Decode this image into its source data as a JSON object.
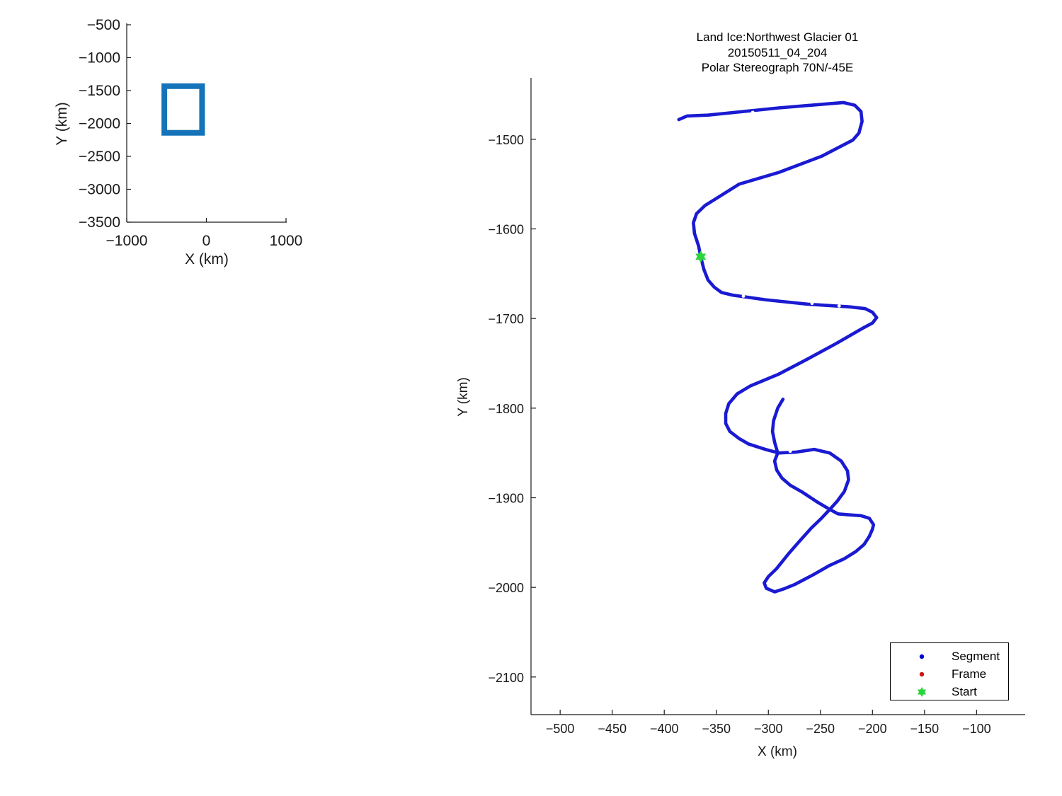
{
  "figure": {
    "background": "#ffffff",
    "text_color": "#1a1a1a"
  },
  "chart_data": [
    {
      "name": "overview-map",
      "type": "line",
      "xlabel": "X (km)",
      "ylabel": "Y (km)",
      "xticks": [
        -1000,
        0,
        1000
      ],
      "yticks": [
        -500,
        -1000,
        -1500,
        -2000,
        -2500,
        -3000,
        -3500
      ],
      "xlim": [
        -1000,
        1000
      ],
      "ylim": [
        -500,
        -3500
      ],
      "grid": false,
      "legend_position": "none",
      "view_rect": {
        "x0": -528,
        "x1": -54,
        "y0": -1433,
        "y1": -2142,
        "color": "#1473b9",
        "line_width": 8
      }
    },
    {
      "name": "flight-track",
      "type": "line",
      "title_lines": [
        "Land Ice:Northwest Glacier 01",
        "20150511_04_204",
        "Polar Stereograph 70N/-45E"
      ],
      "xlabel": "X (km)",
      "ylabel": "Y (km)",
      "xticks": [
        -500,
        -450,
        -400,
        -350,
        -300,
        -250,
        -200,
        -150,
        -100
      ],
      "yticks": [
        -1500,
        -1600,
        -1700,
        -1800,
        -1900,
        -2000,
        -2100
      ],
      "xlim": [
        -528,
        -54
      ],
      "ylim": [
        -1433,
        -2142
      ],
      "grid": false,
      "series": [
        {
          "name": "Segment",
          "color": "#1a1ad2",
          "line_width": 4.6,
          "points": [
            [
              -386,
              -1478
            ],
            [
              -378,
              -1474
            ],
            [
              -358,
              -1473
            ],
            [
              -290,
              -1465
            ],
            [
              -228,
              -1459
            ],
            [
              -217,
              -1462
            ],
            [
              -211,
              -1469
            ],
            [
              -210,
              -1480
            ],
            [
              -213,
              -1493
            ],
            [
              -219,
              -1501
            ],
            [
              -249,
              -1519
            ],
            [
              -290,
              -1537
            ],
            [
              -328,
              -1550
            ],
            [
              -361,
              -1574
            ],
            [
              -369,
              -1583
            ],
            [
              -372,
              -1593
            ],
            [
              -371,
              -1605
            ],
            [
              -367,
              -1619
            ],
            [
              -365,
              -1631
            ],
            [
              -362,
              -1645
            ],
            [
              -358,
              -1657
            ],
            [
              -352,
              -1665
            ],
            [
              -345,
              -1671
            ],
            [
              -334,
              -1674
            ],
            [
              -303,
              -1679
            ],
            [
              -262,
              -1684
            ],
            [
              -222,
              -1687
            ],
            [
              -207,
              -1689
            ],
            [
              -200,
              -1693
            ],
            [
              -196,
              -1699
            ],
            [
              -200,
              -1705
            ],
            [
              -208,
              -1710
            ],
            [
              -235,
              -1728
            ],
            [
              -262,
              -1745
            ],
            [
              -290,
              -1762
            ],
            [
              -317,
              -1775
            ],
            [
              -330,
              -1784
            ],
            [
              -338,
              -1795
            ],
            [
              -341,
              -1806
            ],
            [
              -341,
              -1817
            ],
            [
              -337,
              -1826
            ],
            [
              -328,
              -1834
            ],
            [
              -319,
              -1840
            ],
            [
              -303,
              -1846
            ],
            [
              -290,
              -1850
            ],
            [
              -273,
              -1849
            ],
            [
              -256,
              -1846
            ],
            [
              -241,
              -1850
            ],
            [
              -230,
              -1859
            ],
            [
              -224,
              -1870
            ],
            [
              -223,
              -1880
            ],
            [
              -227,
              -1893
            ],
            [
              -234,
              -1904
            ],
            [
              -241,
              -1913
            ],
            [
              -250,
              -1924
            ],
            [
              -259,
              -1934
            ],
            [
              -269,
              -1947
            ],
            [
              -281,
              -1963
            ],
            [
              -292,
              -1979
            ],
            [
              -300,
              -1988
            ],
            [
              -304,
              -1995
            ],
            [
              -302,
              -2001
            ],
            [
              -294,
              -2005
            ],
            [
              -286,
              -2002
            ],
            [
              -275,
              -1997
            ],
            [
              -257,
              -1986
            ],
            [
              -242,
              -1976
            ],
            [
              -227,
              -1968
            ],
            [
              -216,
              -1960
            ],
            [
              -208,
              -1952
            ],
            [
              -203,
              -1943
            ],
            [
              -200,
              -1935
            ],
            [
              -199,
              -1930
            ],
            [
              -203,
              -1923
            ],
            [
              -211,
              -1920
            ],
            [
              -223,
              -1919
            ],
            [
              -233,
              -1918
            ],
            [
              -241,
              -1913
            ],
            [
              -254,
              -1904
            ],
            [
              -267,
              -1894
            ],
            [
              -279,
              -1886
            ],
            [
              -287,
              -1878
            ],
            [
              -292,
              -1869
            ],
            [
              -294,
              -1859
            ],
            [
              -291,
              -1850
            ],
            [
              -294,
              -1838
            ],
            [
              -296,
              -1826
            ],
            [
              -295,
              -1814
            ],
            [
              -291,
              -1800
            ],
            [
              -286,
              -1790
            ]
          ]
        }
      ],
      "gaps": [
        [
          -315,
          -1470
        ],
        [
          -324,
          -1675
        ],
        [
          -258,
          -1683
        ],
        [
          -232,
          -1686
        ],
        [
          -279,
          -1848
        ]
      ],
      "start": {
        "x": -365,
        "y": -1631,
        "color": "#2bd53c"
      },
      "legend": {
        "position": "bottom-right",
        "items": [
          {
            "label": "Segment",
            "marker": "dot",
            "color": "#0000cc"
          },
          {
            "label": "Frame",
            "marker": "dot",
            "color": "#cc1414"
          },
          {
            "label": "Start",
            "marker": "hexagram",
            "color": "#2bd53c"
          }
        ]
      }
    }
  ]
}
